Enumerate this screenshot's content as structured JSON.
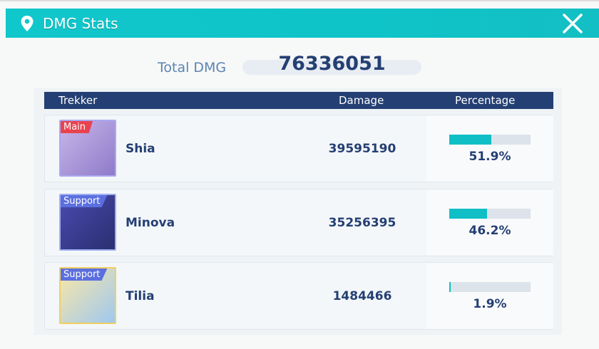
{
  "header": {
    "title": "DMG Stats",
    "icon": "map-pin-icon",
    "close_icon": "close-icon"
  },
  "total": {
    "label": "Total DMG",
    "value": "76336051"
  },
  "table": {
    "columns": [
      "Trekker",
      "Damage",
      "Percentage"
    ],
    "rows": [
      {
        "role": "Main",
        "name": "Shia",
        "damage": "39595190",
        "percent": 51.9,
        "percent_label": "51.9%",
        "role_color": "#e8434f",
        "frame_color": "#a8a8f0",
        "art": [
          "#c9b6ea",
          "#8e7bc9"
        ]
      },
      {
        "role": "Support",
        "name": "Minova",
        "damage": "35256395",
        "percent": 46.2,
        "percent_label": "46.2%",
        "role_color": "#5b6fe0",
        "frame_color": "#9fb0f0",
        "art": [
          "#4a4ab0",
          "#2a2f70"
        ]
      },
      {
        "role": "Support",
        "name": "Tilia",
        "damage": "1484466",
        "percent": 1.9,
        "percent_label": "1.9%",
        "role_color": "#5b6fe0",
        "frame_color": "#f0d060",
        "art": [
          "#fbe7a6",
          "#9fc8ef"
        ]
      }
    ]
  },
  "colors": {
    "accent": "#10c7cb",
    "navy": "#243f73",
    "bar_fill": "#10bfc6"
  }
}
